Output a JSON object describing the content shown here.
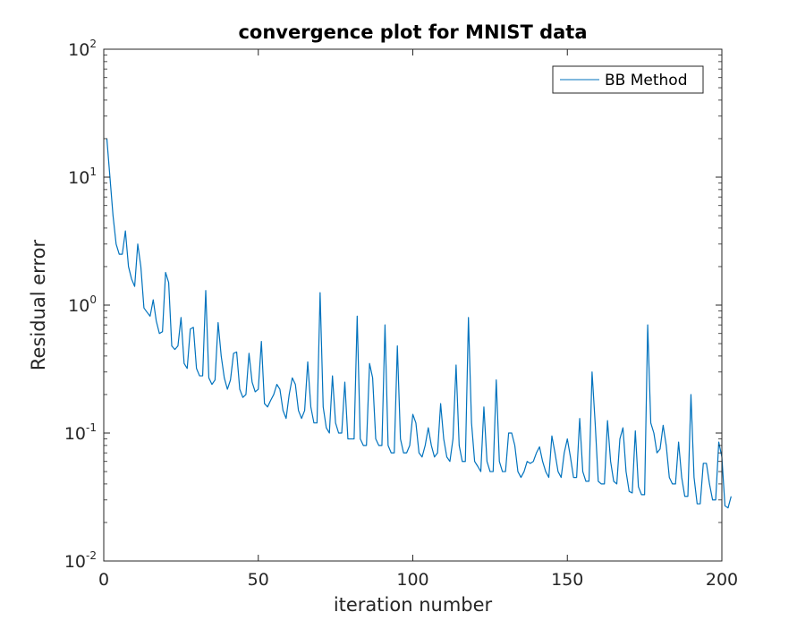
{
  "chart_data": {
    "type": "line",
    "title": "convergence plot for MNIST data",
    "xlabel": "iteration number",
    "ylabel": "Residual error",
    "xlim": [
      0,
      200
    ],
    "ylim": [
      0.01,
      100
    ],
    "yscale": "log",
    "grid": false,
    "legend_location": "top-right",
    "x_ticks": [
      0,
      50,
      100,
      150,
      200
    ],
    "x_tick_labels": [
      "0",
      "50",
      "100",
      "150",
      "200"
    ],
    "y_ticks": [
      0.01,
      0.1,
      1,
      10,
      100
    ],
    "y_tick_labels": [
      {
        "base": "10",
        "exp": "-2"
      },
      {
        "base": "10",
        "exp": "-1"
      },
      {
        "base": "10",
        "exp": "0"
      },
      {
        "base": "10",
        "exp": "1"
      },
      {
        "base": "10",
        "exp": "2"
      }
    ],
    "series": [
      {
        "name": "BB Method",
        "color": "#0072BD",
        "x_start": 1,
        "x_step": 1,
        "y": [
          20,
          10,
          5,
          3,
          2.5,
          2.5,
          3.8,
          2,
          1.6,
          1.4,
          3,
          2,
          0.95,
          0.88,
          0.82,
          1.1,
          0.75,
          0.6,
          0.62,
          1.8,
          1.5,
          0.48,
          0.45,
          0.48,
          0.8,
          0.35,
          0.32,
          0.65,
          0.67,
          0.32,
          0.28,
          0.28,
          1.3,
          0.27,
          0.24,
          0.26,
          0.73,
          0.4,
          0.27,
          0.22,
          0.26,
          0.42,
          0.43,
          0.22,
          0.19,
          0.2,
          0.42,
          0.25,
          0.21,
          0.22,
          0.52,
          0.17,
          0.16,
          0.18,
          0.2,
          0.24,
          0.22,
          0.15,
          0.13,
          0.2,
          0.27,
          0.24,
          0.15,
          0.13,
          0.15,
          0.36,
          0.16,
          0.12,
          0.12,
          1.25,
          0.16,
          0.11,
          0.1,
          0.28,
          0.12,
          0.1,
          0.1,
          0.25,
          0.09,
          0.09,
          0.09,
          0.82,
          0.09,
          0.08,
          0.08,
          0.35,
          0.27,
          0.09,
          0.08,
          0.08,
          0.7,
          0.08,
          0.07,
          0.07,
          0.48,
          0.09,
          0.07,
          0.07,
          0.08,
          0.14,
          0.12,
          0.07,
          0.065,
          0.08,
          0.11,
          0.08,
          0.065,
          0.07,
          0.17,
          0.09,
          0.065,
          0.06,
          0.09,
          0.34,
          0.08,
          0.06,
          0.06,
          0.8,
          0.12,
          0.06,
          0.055,
          0.05,
          0.16,
          0.06,
          0.05,
          0.05,
          0.26,
          0.06,
          0.05,
          0.05,
          0.1,
          0.1,
          0.08,
          0.05,
          0.045,
          0.05,
          0.06,
          0.058,
          0.06,
          0.07,
          0.078,
          0.06,
          0.05,
          0.045,
          0.095,
          0.07,
          0.05,
          0.045,
          0.07,
          0.09,
          0.065,
          0.045,
          0.045,
          0.13,
          0.05,
          0.042,
          0.042,
          0.3,
          0.12,
          0.042,
          0.04,
          0.04,
          0.125,
          0.06,
          0.042,
          0.04,
          0.09,
          0.11,
          0.05,
          0.035,
          0.034,
          0.104,
          0.038,
          0.033,
          0.033,
          0.7,
          0.12,
          0.1,
          0.07,
          0.075,
          0.115,
          0.08,
          0.045,
          0.04,
          0.04,
          0.085,
          0.045,
          0.032,
          0.032,
          0.2,
          0.045,
          0.028,
          0.028,
          0.058,
          0.058,
          0.04,
          0.03,
          0.03,
          0.085,
          0.065,
          0.027,
          0.026,
          0.032
        ]
      }
    ]
  }
}
